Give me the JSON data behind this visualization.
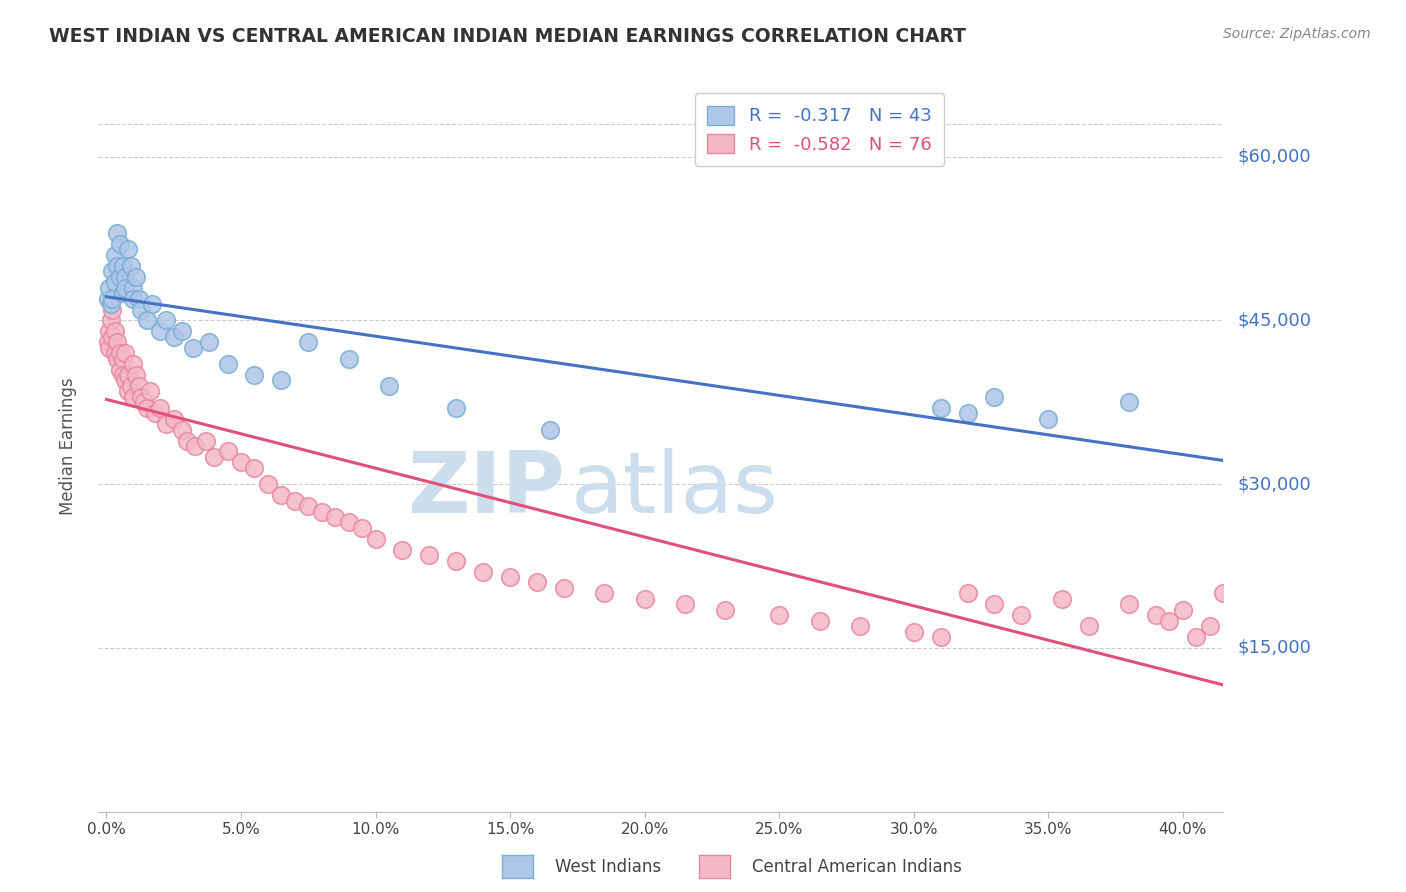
{
  "title": "WEST INDIAN VS CENTRAL AMERICAN INDIAN MEDIAN EARNINGS CORRELATION CHART",
  "source": "Source: ZipAtlas.com",
  "ylabel": "Median Earnings",
  "ytick_labels": [
    "$15,000",
    "$30,000",
    "$45,000",
    "$60,000"
  ],
  "ytick_values": [
    15000,
    30000,
    45000,
    60000
  ],
  "ymin": 0,
  "ymax": 67000,
  "xmin": -0.003,
  "xmax": 0.415,
  "legend_blue_text": "R =  -0.317   N = 43",
  "legend_pink_text": "R =  -0.582   N = 76",
  "watermark_zip": "ZIP",
  "watermark_atlas": "atlas",
  "watermark_color": "#ccdded",
  "blue_scatter_x": [
    0.0005,
    0.001,
    0.0015,
    0.002,
    0.002,
    0.003,
    0.003,
    0.004,
    0.004,
    0.005,
    0.005,
    0.006,
    0.006,
    0.007,
    0.007,
    0.008,
    0.009,
    0.01,
    0.01,
    0.011,
    0.012,
    0.013,
    0.015,
    0.017,
    0.02,
    0.022,
    0.025,
    0.028,
    0.032,
    0.038,
    0.045,
    0.055,
    0.065,
    0.075,
    0.09,
    0.105,
    0.13,
    0.165,
    0.31,
    0.32,
    0.33,
    0.35,
    0.38
  ],
  "blue_scatter_y": [
    47000,
    48000,
    46500,
    49500,
    47000,
    51000,
    48500,
    53000,
    50000,
    52000,
    49000,
    50000,
    47500,
    49000,
    48000,
    51500,
    50000,
    48000,
    47000,
    49000,
    47000,
    46000,
    45000,
    46500,
    44000,
    45000,
    43500,
    44000,
    42500,
    43000,
    41000,
    40000,
    39500,
    43000,
    41500,
    39000,
    37000,
    35000,
    37000,
    36500,
    38000,
    36000,
    37500
  ],
  "pink_scatter_x": [
    0.0005,
    0.001,
    0.001,
    0.0015,
    0.002,
    0.002,
    0.003,
    0.003,
    0.004,
    0.004,
    0.005,
    0.005,
    0.006,
    0.006,
    0.007,
    0.007,
    0.008,
    0.008,
    0.009,
    0.01,
    0.01,
    0.011,
    0.012,
    0.013,
    0.014,
    0.015,
    0.016,
    0.018,
    0.02,
    0.022,
    0.025,
    0.028,
    0.03,
    0.033,
    0.037,
    0.04,
    0.045,
    0.05,
    0.055,
    0.06,
    0.065,
    0.07,
    0.075,
    0.08,
    0.085,
    0.09,
    0.095,
    0.1,
    0.11,
    0.12,
    0.13,
    0.14,
    0.15,
    0.16,
    0.17,
    0.185,
    0.2,
    0.215,
    0.23,
    0.25,
    0.265,
    0.28,
    0.3,
    0.31,
    0.32,
    0.33,
    0.34,
    0.355,
    0.365,
    0.38,
    0.39,
    0.395,
    0.4,
    0.405,
    0.41,
    0.415
  ],
  "pink_scatter_y": [
    43000,
    44000,
    42500,
    45000,
    43500,
    46000,
    44000,
    42000,
    43000,
    41500,
    42000,
    40500,
    41500,
    40000,
    42000,
    39500,
    40000,
    38500,
    39000,
    41000,
    38000,
    40000,
    39000,
    38000,
    37500,
    37000,
    38500,
    36500,
    37000,
    35500,
    36000,
    35000,
    34000,
    33500,
    34000,
    32500,
    33000,
    32000,
    31500,
    30000,
    29000,
    28500,
    28000,
    27500,
    27000,
    26500,
    26000,
    25000,
    24000,
    23500,
    23000,
    22000,
    21500,
    21000,
    20500,
    20000,
    19500,
    19000,
    18500,
    18000,
    17500,
    17000,
    16500,
    16000,
    20000,
    19000,
    18000,
    19500,
    17000,
    19000,
    18000,
    17500,
    18500,
    16000,
    17000,
    20000
  ],
  "blue_line_color": "#4472c4",
  "pink_line_color": "#e0507a",
  "blue_dot_facecolor": "#aec6e8",
  "blue_dot_edgecolor": "#7baed4",
  "pink_dot_facecolor": "#f4b8c8",
  "pink_dot_edgecolor": "#e888a0",
  "title_color": "#333333",
  "axis_label_color": "#4472c4",
  "background_color": "#ffffff",
  "grid_color": "#cccccc",
  "xtick_positions": [
    0.0,
    0.05,
    0.1,
    0.15,
    0.2,
    0.25,
    0.3,
    0.35,
    0.4
  ],
  "xtick_labels": [
    "0.0%",
    "5.0%",
    "10.0%",
    "15.0%",
    "20.0%",
    "25.0%",
    "30.0%",
    "35.0%",
    "40.0%"
  ]
}
